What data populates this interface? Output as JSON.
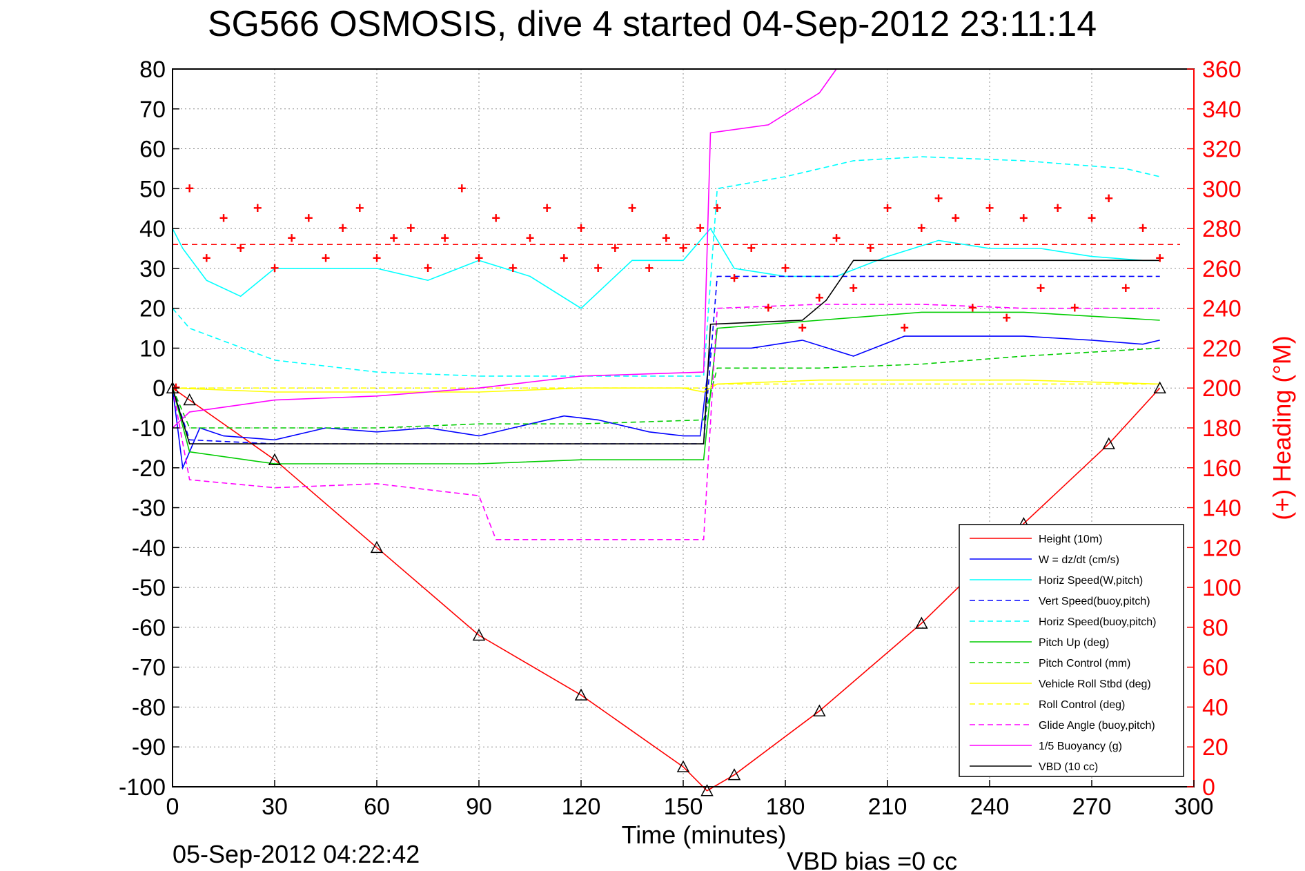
{
  "chart_data": {
    "type": "line",
    "title": "SG566 OSMOSIS, dive 4 started 04-Sep-2012 23:11:14",
    "xlabel": "Time (minutes)",
    "ylabel_right": "(+) Heading (°M)",
    "footer_left": "05-Sep-2012 04:22:42",
    "footer_right": "VBD bias =0 cc",
    "xlim": [
      0,
      300
    ],
    "ylim": [
      -100,
      80
    ],
    "ylim_right": [
      0,
      360
    ],
    "x_ticks": [
      "0",
      "30",
      "60",
      "90",
      "120",
      "150",
      "180",
      "210",
      "240",
      "270",
      "300"
    ],
    "y_ticks": [
      "80",
      "70",
      "60",
      "50",
      "40",
      "30",
      "20",
      "10",
      "0",
      "-10",
      "-20",
      "-30",
      "-40",
      "-50",
      "-60",
      "-70",
      "-80",
      "-90",
      "-100"
    ],
    "y_right_ticks": [
      "360",
      "340",
      "320",
      "300",
      "280",
      "260",
      "240",
      "220",
      "200",
      "180",
      "160",
      "140",
      "120",
      "100",
      "80",
      "60",
      "40",
      "20",
      "0"
    ],
    "grid": true,
    "legend_position": "bottom-right",
    "colors": {
      "axis": "#000000",
      "right_axis": "#ff0000",
      "grid": "#8c8c8c"
    },
    "series": [
      {
        "name": "Height (10m)",
        "color": "#ff0000",
        "style": "solid",
        "x": [
          0,
          5,
          30,
          60,
          90,
          120,
          150,
          157,
          165,
          190,
          220,
          250,
          275,
          290
        ],
        "y": [
          0,
          -3,
          -18,
          -40,
          -62,
          -77,
          -95,
          -101,
          -97,
          -81,
          -59,
          -34,
          -14,
          0
        ]
      },
      {
        "name": "W = dz/dt (cm/s)",
        "color": "#0000ff",
        "style": "solid",
        "x": [
          0,
          3,
          8,
          15,
          30,
          45,
          60,
          75,
          90,
          100,
          115,
          125,
          140,
          150,
          155,
          158,
          160,
          170,
          185,
          200,
          215,
          230,
          250,
          270,
          285,
          290
        ],
        "y": [
          0,
          -20,
          -10,
          -12,
          -13,
          -10,
          -11,
          -10,
          -12,
          -10,
          -7,
          -8,
          -11,
          -12,
          -12,
          10,
          10,
          10,
          12,
          8,
          13,
          13,
          13,
          12,
          11,
          12
        ]
      },
      {
        "name": "Horiz Speed(W,pitch)",
        "color": "#00ffff",
        "style": "solid",
        "x": [
          0,
          3,
          10,
          20,
          30,
          45,
          60,
          75,
          90,
          105,
          120,
          135,
          150,
          158,
          165,
          180,
          195,
          210,
          225,
          240,
          255,
          270,
          285,
          290
        ],
        "y": [
          40,
          35,
          27,
          23,
          30,
          30,
          30,
          27,
          32,
          28,
          20,
          32,
          32,
          40,
          30,
          28,
          28,
          33,
          37,
          35,
          35,
          33,
          32,
          32
        ]
      },
      {
        "name": "Vert Speed(buoy,pitch)",
        "color": "#0000ff",
        "style": "dashed",
        "x": [
          0,
          5,
          30,
          90,
          150,
          156,
          160,
          190,
          290
        ],
        "y": [
          0,
          -13,
          -14,
          -14,
          -14,
          -14,
          28,
          28,
          28
        ]
      },
      {
        "name": "Horiz Speed(buoy,pitch)",
        "color": "#00ffff",
        "style": "dashed",
        "x": [
          0,
          5,
          30,
          60,
          90,
          120,
          156,
          160,
          180,
          200,
          220,
          250,
          280,
          290
        ],
        "y": [
          20,
          15,
          7,
          4,
          3,
          3,
          3,
          50,
          53,
          57,
          58,
          57,
          55,
          53
        ]
      },
      {
        "name": "Pitch Up (deg)",
        "color": "#00cc00",
        "style": "solid",
        "x": [
          0,
          5,
          30,
          60,
          90,
          120,
          150,
          156,
          160,
          190,
          220,
          250,
          290
        ],
        "y": [
          0,
          -16,
          -19,
          -19,
          -19,
          -18,
          -18,
          -18,
          15,
          17,
          19,
          19,
          17
        ]
      },
      {
        "name": "Pitch Control (mm)",
        "color": "#00cc00",
        "style": "dashed",
        "x": [
          0,
          5,
          30,
          60,
          90,
          120,
          156,
          160,
          190,
          220,
          250,
          290
        ],
        "y": [
          0,
          -10,
          -10,
          -10,
          -9,
          -9,
          -8,
          5,
          5,
          6,
          8,
          10
        ]
      },
      {
        "name": "Vehicle Roll Stbd (deg)",
        "color": "#ffff00",
        "style": "solid",
        "x": [
          0,
          30,
          60,
          90,
          120,
          150,
          156,
          160,
          190,
          220,
          250,
          290
        ],
        "y": [
          0,
          -1,
          -1,
          -1,
          0,
          0,
          -1,
          1,
          2,
          2,
          2,
          1
        ]
      },
      {
        "name": "Roll Control (deg)",
        "color": "#ffff00",
        "style": "dashed",
        "x": [
          0,
          30,
          60,
          90,
          120,
          150,
          156,
          160,
          190,
          220,
          250,
          290
        ],
        "y": [
          0,
          0,
          0,
          0,
          0,
          0,
          0,
          1,
          1,
          1,
          1,
          1
        ]
      },
      {
        "name": "Glide Angle (buoy,pitch)",
        "color": "#ff00ff",
        "style": "dashed",
        "x": [
          0,
          5,
          30,
          60,
          90,
          95,
          156,
          160,
          190,
          220,
          250,
          290
        ],
        "y": [
          0,
          -23,
          -25,
          -24,
          -27,
          -38,
          -38,
          20,
          21,
          21,
          20,
          20
        ]
      },
      {
        "name": "1/5 Buoyancy (g)",
        "color": "#ff00ff",
        "style": "solid",
        "x": [
          0,
          5,
          30,
          60,
          90,
          120,
          156,
          158,
          175,
          190,
          195
        ],
        "y": [
          -10,
          -6,
          -3,
          -2,
          0,
          3,
          4,
          64,
          66,
          74,
          80
        ]
      },
      {
        "name": "VBD (10 cc)",
        "color": "#000000",
        "style": "solid",
        "x": [
          0,
          5,
          156,
          158,
          185,
          192,
          200,
          290
        ],
        "y": [
          0,
          -14,
          -14,
          16,
          17,
          22,
          32,
          32
        ]
      }
    ],
    "heading_series": {
      "name": "Heading",
      "axis": "right",
      "marker": "+",
      "color": "#ff0000",
      "x": [
        1,
        5,
        10,
        15,
        20,
        25,
        30,
        35,
        40,
        45,
        50,
        55,
        60,
        65,
        70,
        75,
        80,
        85,
        90,
        95,
        100,
        105,
        110,
        115,
        120,
        125,
        130,
        135,
        140,
        145,
        150,
        155,
        160,
        165,
        170,
        175,
        180,
        185,
        190,
        195,
        200,
        205,
        210,
        215,
        220,
        225,
        230,
        235,
        240,
        245,
        250,
        255,
        260,
        265,
        270,
        275,
        280,
        285,
        290
      ],
      "y": [
        200,
        300,
        265,
        285,
        270,
        290,
        260,
        275,
        285,
        265,
        280,
        290,
        265,
        275,
        280,
        260,
        275,
        300,
        265,
        285,
        260,
        275,
        290,
        265,
        280,
        260,
        270,
        290,
        260,
        275,
        270,
        280,
        290,
        255,
        270,
        240,
        260,
        230,
        245,
        275,
        250,
        270,
        290,
        230,
        280,
        295,
        285,
        240,
        290,
        235,
        285,
        250,
        290,
        240,
        285,
        295,
        250,
        280,
        265
      ]
    },
    "dashed_reference": {
      "y": 36,
      "color": "#ff0000"
    }
  }
}
